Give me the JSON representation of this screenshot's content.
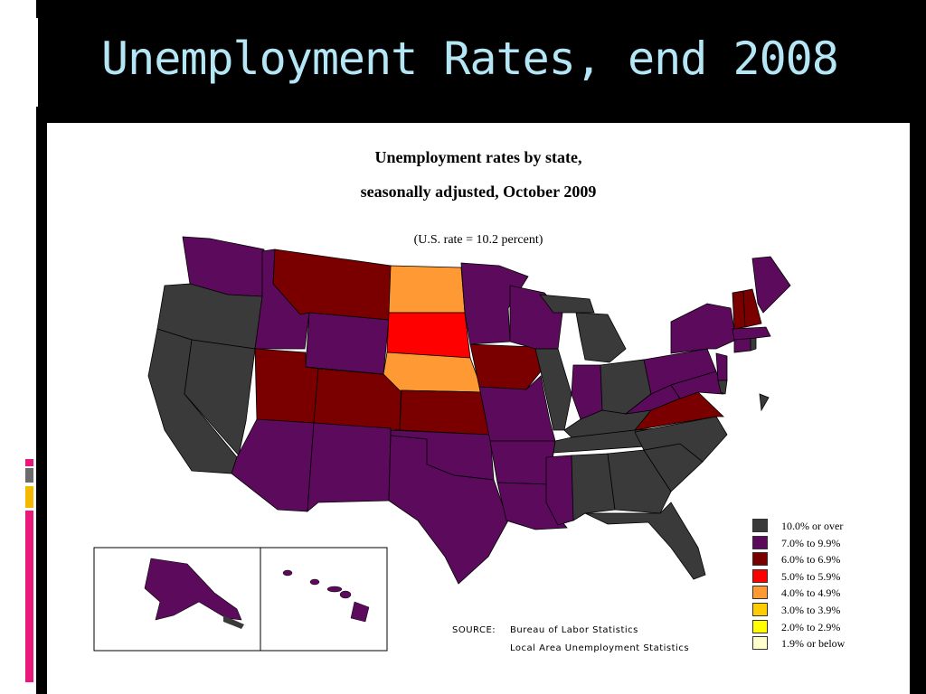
{
  "slide": {
    "title": "Unemployment Rates, end 2008"
  },
  "map": {
    "title_line1": "Unemployment rates by state,",
    "title_line2": "seasonally adjusted, October 2009",
    "note": "(U.S. rate = 10.2 percent)",
    "source_label": "SOURCE:",
    "source_line1": "Bureau of Labor Statistics",
    "source_line2": "Local Area Unemployment Statistics"
  },
  "legend": [
    {
      "label": "10.0% or over",
      "color": "#3a3a3a"
    },
    {
      "label": "7.0% to 9.9%",
      "color": "#5c0a5c"
    },
    {
      "label": "6.0% to 6.9%",
      "color": "#7a0000"
    },
    {
      "label": "5.0% to 5.9%",
      "color": "#ff0000"
    },
    {
      "label": "4.0% to 4.9%",
      "color": "#ff9933"
    },
    {
      "label": "3.0% to 3.9%",
      "color": "#ffcc00"
    },
    {
      "label": "2.0% to 2.9%",
      "color": "#ffff00"
    },
    {
      "label": "1.9% or below",
      "color": "#ffffcc"
    }
  ],
  "state_categories": {
    "dark_gray": [
      "WA-coast",
      "OR",
      "CA",
      "NV",
      "MI",
      "IL",
      "OH",
      "IN-east",
      "KY",
      "TN",
      "NC",
      "SC",
      "GA",
      "FL",
      "AL",
      "RI",
      "DC",
      "DE"
    ],
    "purple": [
      "WA",
      "ID",
      "WY",
      "AZ",
      "NM",
      "TX",
      "OK",
      "MO",
      "AR",
      "LA",
      "MS",
      "MN",
      "WI",
      "IN",
      "PA",
      "NY",
      "ME",
      "WV",
      "MD",
      "NJ",
      "CT",
      "MA",
      "AK",
      "HI"
    ],
    "dark_red": [
      "MT",
      "UT",
      "CO",
      "KS",
      "IA",
      "VA",
      "VT",
      "NH"
    ],
    "red": [
      "SD"
    ],
    "orange": [
      "ND",
      "NE"
    ]
  },
  "colors": {
    "accent_pink": "#e8197b",
    "accent_gray": "#6b6b6b",
    "accent_yellow": "#f5b800",
    "title_color": "#b5e6f5"
  }
}
